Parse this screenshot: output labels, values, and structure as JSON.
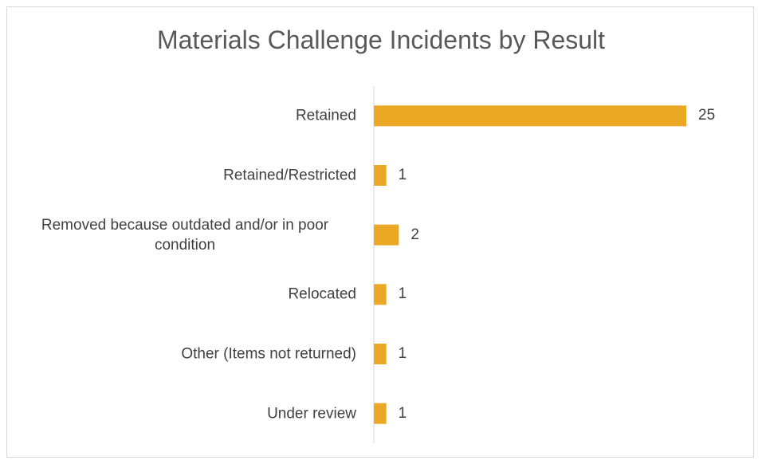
{
  "chart_data": {
    "type": "bar",
    "orientation": "horizontal",
    "title": "Materials Challenge Incidents by Result",
    "categories": [
      "Retained",
      "Retained/Restricted",
      "Removed because outdated and/or in poor condition",
      "Relocated",
      "Other (Items not returned)",
      "Under review"
    ],
    "values": [
      25,
      1,
      2,
      1,
      1,
      1
    ],
    "color": "#eaa824"
  }
}
